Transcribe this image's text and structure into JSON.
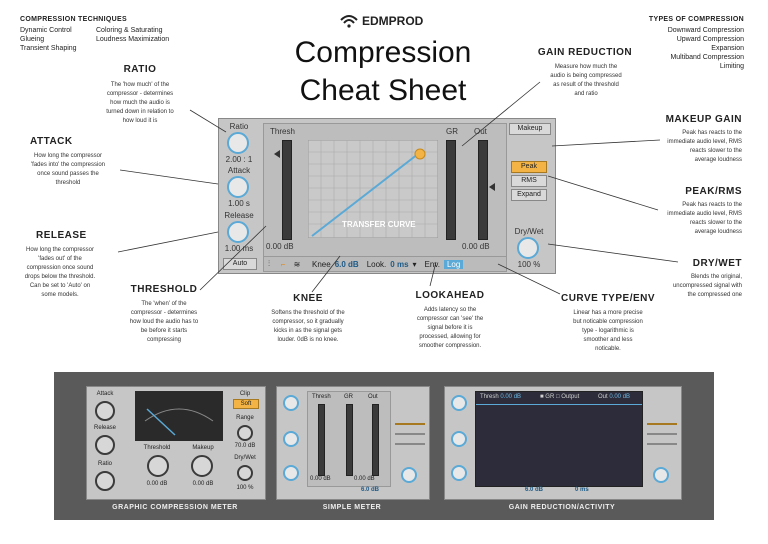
{
  "header": {
    "brand": "EDMPROD",
    "title_line1": "Compression",
    "title_line2": "Cheat Sheet"
  },
  "techniques": {
    "title": "COMPRESSION TECHNIQUES",
    "col1": [
      "Dynamic Control",
      "Glueing",
      "Transient Shaping"
    ],
    "col2": [
      "Coloring & Saturating",
      "Loudness Maximization"
    ]
  },
  "types": {
    "title": "TYPES OF COMPRESSION",
    "items": [
      "Downward Compression",
      "Upward Compression",
      "Expansion",
      "Multiband Compression",
      "Limiting"
    ]
  },
  "sections": {
    "ratio": {
      "title": "RATIO",
      "desc": [
        "The 'how much' of the",
        "compressor - determines",
        "how much the audio is",
        "turned down in relation to",
        "how loud it is"
      ]
    },
    "attack": {
      "title": "ATTACK",
      "desc": [
        "How long the compressor",
        "'fades into' the compression",
        "once sound passes the",
        "threshold"
      ]
    },
    "release": {
      "title": "RELEASE",
      "desc": [
        "How long the compressor",
        "'fades out' of the",
        "compression once sound",
        "drops below the threshold.",
        "Can be set to 'Auto' on",
        "some models."
      ]
    },
    "threshold": {
      "title": "THRESHOLD",
      "desc": [
        "The 'when' of the",
        "compressor - determines",
        "how loud the audio has to",
        "be before it starts",
        "compressing"
      ]
    },
    "knee": {
      "title": "KNEE",
      "desc": [
        "Softens the threshold of the",
        "compressor, so it gradually",
        "kicks in as the signal gets",
        "louder. 0dB is no knee."
      ]
    },
    "lookahead": {
      "title": "LOOKAHEAD",
      "desc": [
        "Adds latency so the",
        "compressor can 'see' the",
        "signal before it is",
        "processed, allowing for",
        "smoother compression."
      ]
    },
    "curve": {
      "title": "CURVE TYPE/ENV",
      "desc": [
        "Linear has a more precise",
        "but noticable compression",
        "type - logarithmic is",
        "smoother and less",
        "noticable."
      ]
    },
    "gain_reduction": {
      "title": "GAIN REDUCTION",
      "desc": [
        "Measure how much the",
        "audio is being compressed",
        "as result of the threshold",
        "and ratio"
      ]
    },
    "makeup": {
      "title": "MAKEUP GAIN",
      "desc": [
        "Peak has reacts to the",
        "immediate audio level, RMS",
        "reacts slower to the",
        "average loudness"
      ]
    },
    "peakrms": {
      "title": "PEAK/RMS",
      "desc": [
        "Peak has reacts to the",
        "immediate audio level, RMS",
        "reacts slower to the",
        "average loudness"
      ]
    },
    "drywet": {
      "title": "DRY/WET",
      "desc": [
        "Blends the original,",
        "uncompressed signal with",
        "the compressed one"
      ]
    }
  },
  "device": {
    "ratio_label": "Ratio",
    "ratio_value": "2.00 : 1",
    "attack_label": "Attack",
    "attack_value": "1.00 s",
    "release_label": "Release",
    "release_value": "1.00 ms",
    "auto_label": "Auto",
    "thresh_label": "Thresh",
    "gr_label": "GR",
    "out_label": "Out",
    "makeup_label": "Makeup",
    "left_db": "0.00 dB",
    "right_db": "0.00 dB",
    "curve_label": "TRANSFER CURVE",
    "knee_label": "Knee",
    "knee_value": "6.0 dB",
    "look_label": "Look.",
    "look_value": "0 ms",
    "env_label": "Env.",
    "log_label": "Log",
    "peak_label": "Peak",
    "rms_label": "RMS",
    "expand_label": "Expand",
    "drywet_label": "Dry/Wet",
    "drywet_value": "100 %"
  },
  "bottom": {
    "caption1": "GRAPHIC COMPRESSION METER",
    "caption2": "SIMPLE METER",
    "caption3": "GAIN REDUCTION/ACTIVITY",
    "g_attack": "Attack",
    "g_release": "Release",
    "g_ratio": "Ratio",
    "g_threshold": "Threshold",
    "g_makeup": "Makeup",
    "g_thresh_value": "0.00 dB",
    "g_makeup_value": "0.00 dB",
    "g_clip": "Clip",
    "g_soft": "Soft",
    "g_range": "Range",
    "g_range_value": "70.0 dB",
    "g_drywet": "Dry/Wet",
    "g_drywet_value": "100 %",
    "s_thresh": "Thresh",
    "s_gr": "GR",
    "s_out": "Out",
    "s_left_db": "0.00 dB",
    "s_right_db": "0.00 dB",
    "s_knee_value": "6.0 dB",
    "a_thresh_value": "0.00 dB",
    "a_gr": "GR",
    "a_output": "Output",
    "a_out": "Out",
    "a_out_value": "0.00 dB",
    "a_knee_value": "6.0 dB",
    "a_look_value": "0 ms"
  },
  "colors": {
    "accent_blue": "#5aa9d6",
    "peak_orange": "#f3b445",
    "dark_band": "#5a5a5a"
  }
}
